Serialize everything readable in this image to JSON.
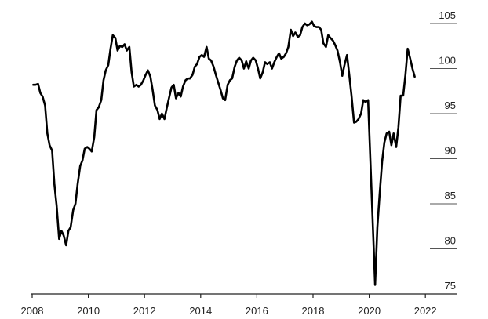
{
  "chart_data": {
    "type": "line",
    "color": "#000000",
    "x": [
      2008.04,
      2008.12,
      2008.21,
      2008.29,
      2008.37,
      2008.46,
      2008.54,
      2008.62,
      2008.71,
      2008.79,
      2008.87,
      2008.96,
      2009.04,
      2009.12,
      2009.21,
      2009.29,
      2009.37,
      2009.46,
      2009.54,
      2009.62,
      2009.71,
      2009.79,
      2009.87,
      2009.96,
      2010.04,
      2010.12,
      2010.21,
      2010.29,
      2010.37,
      2010.46,
      2010.54,
      2010.62,
      2010.71,
      2010.79,
      2010.87,
      2010.96,
      2011.04,
      2011.12,
      2011.21,
      2011.29,
      2011.37,
      2011.46,
      2011.54,
      2011.62,
      2011.71,
      2011.79,
      2011.87,
      2011.96,
      2012.04,
      2012.12,
      2012.21,
      2012.29,
      2012.37,
      2012.46,
      2012.54,
      2012.62,
      2012.71,
      2012.79,
      2012.87,
      2012.96,
      2013.04,
      2013.12,
      2013.21,
      2013.29,
      2013.37,
      2013.46,
      2013.54,
      2013.62,
      2013.71,
      2013.79,
      2013.87,
      2013.96,
      2014.04,
      2014.12,
      2014.21,
      2014.29,
      2014.37,
      2014.46,
      2014.54,
      2014.62,
      2014.71,
      2014.79,
      2014.87,
      2014.96,
      2015.04,
      2015.12,
      2015.21,
      2015.29,
      2015.37,
      2015.46,
      2015.54,
      2015.62,
      2015.71,
      2015.79,
      2015.87,
      2015.96,
      2016.04,
      2016.12,
      2016.21,
      2016.29,
      2016.37,
      2016.46,
      2016.54,
      2016.62,
      2016.71,
      2016.79,
      2016.87,
      2016.96,
      2017.04,
      2017.12,
      2017.21,
      2017.29,
      2017.37,
      2017.46,
      2017.54,
      2017.62,
      2017.71,
      2017.79,
      2017.87,
      2017.96,
      2018.04,
      2018.12,
      2018.21,
      2018.29,
      2018.37,
      2018.46,
      2018.54,
      2018.62,
      2018.71,
      2018.79,
      2018.87,
      2018.96,
      2019.04,
      2019.12,
      2019.21,
      2019.29,
      2019.37,
      2019.46,
      2019.54,
      2019.62,
      2019.71,
      2019.79,
      2019.87,
      2019.96,
      2020.21,
      2020.29,
      2020.37,
      2020.46,
      2020.54,
      2020.62,
      2020.71,
      2020.79,
      2020.87,
      2020.96,
      2021.04,
      2021.12,
      2021.21,
      2021.29,
      2021.37,
      2021.46,
      2021.54,
      2021.62
    ],
    "values": [
      98.2,
      98.2,
      98.3,
      97.3,
      96.9,
      95.9,
      92.8,
      91.5,
      90.9,
      87.2,
      84.8,
      81.1,
      82.0,
      81.5,
      80.4,
      82.0,
      82.4,
      84.3,
      85.0,
      87.2,
      89.2,
      89.8,
      91.1,
      91.3,
      91.1,
      90.8,
      92.4,
      95.4,
      95.7,
      96.5,
      98.7,
      99.8,
      100.4,
      102.2,
      103.7,
      103.4,
      102.0,
      102.5,
      102.4,
      102.7,
      102.0,
      102.4,
      99.6,
      98.0,
      98.2,
      98.0,
      98.2,
      98.7,
      99.3,
      99.8,
      99.1,
      97.6,
      95.9,
      95.4,
      94.4,
      95.0,
      94.4,
      95.6,
      96.7,
      97.9,
      98.2,
      96.7,
      97.3,
      96.9,
      98.0,
      98.7,
      98.9,
      98.9,
      99.3,
      100.2,
      100.5,
      101.3,
      101.5,
      101.3,
      102.4,
      101.1,
      100.9,
      100.2,
      99.3,
      98.5,
      97.6,
      96.7,
      96.5,
      98.2,
      98.7,
      98.9,
      100.2,
      100.9,
      101.2,
      100.9,
      100.0,
      100.8,
      100.0,
      100.9,
      101.2,
      100.9,
      100.0,
      98.9,
      99.6,
      100.7,
      100.5,
      100.7,
      100.0,
      100.7,
      101.3,
      101.7,
      101.1,
      101.3,
      101.7,
      102.4,
      104.3,
      103.6,
      104.0,
      103.5,
      103.7,
      104.6,
      105.0,
      104.8,
      104.9,
      105.2,
      104.7,
      104.6,
      104.6,
      104.3,
      102.8,
      102.4,
      103.7,
      103.4,
      103.1,
      102.6,
      102.0,
      100.7,
      99.2,
      100.4,
      101.5,
      99.3,
      97.0,
      94.0,
      94.1,
      94.4,
      95.0,
      96.5,
      96.3,
      96.5,
      76.0,
      82.4,
      86.0,
      89.7,
      91.8,
      92.8,
      93.0,
      91.5,
      92.8,
      91.3,
      93.5,
      97.0,
      97.0,
      99.3,
      102.2,
      101.1,
      100.0,
      99.1
    ],
    "xlim": [
      2008,
      2023.14
    ],
    "ylim": [
      75,
      105
    ],
    "xticks": [
      2008,
      2010,
      2012,
      2014,
      2016,
      2018,
      2020,
      2022
    ],
    "yticks": [
      75,
      80,
      85,
      90,
      95,
      100,
      105
    ]
  }
}
